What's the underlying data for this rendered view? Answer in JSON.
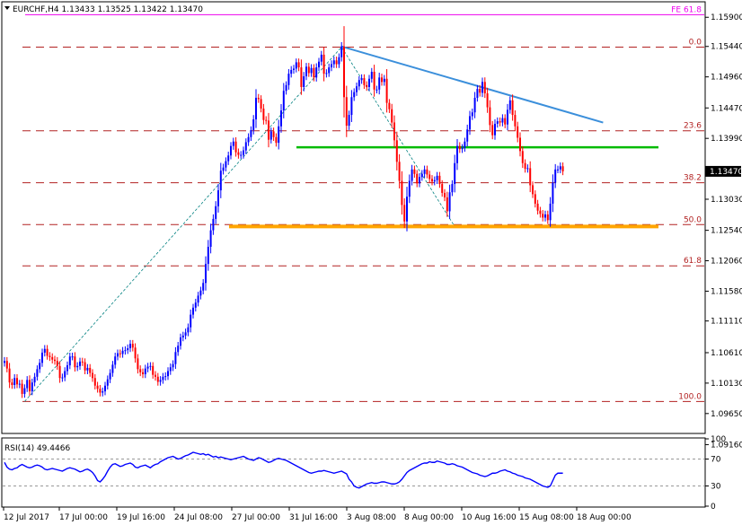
{
  "header": {
    "symbol_line": "EURCHF,H4  1.13433 1.13525 1.13422 1.13470",
    "fe_label": "FE 61.8"
  },
  "colors": {
    "bull": "#0000ff",
    "bear": "#ff0000",
    "fib_line": "#b22222",
    "fe_line": "#ee00ee",
    "green_line": "#00bb00",
    "orange_line": "#ffa500",
    "trend_line": "#3b8fdb",
    "rsi_line": "#0000ff",
    "price_label_bg": "#000000"
  },
  "chart_data": [
    {
      "type": "candlestick",
      "title": "EURCHF,H4",
      "ohlc_current": {
        "open": 1.13433,
        "high": 1.13525,
        "low": 1.13422,
        "close": 1.1347
      },
      "ylim": [
        1.0935,
        1.1613
      ],
      "y_ticks": [
        "1.15900",
        "1.15440",
        "1.14960",
        "1.14470",
        "1.13990",
        "1.13030",
        "1.12540",
        "1.12060",
        "1.11580",
        "1.11110",
        "1.10610",
        "1.10130",
        "1.09650",
        "1.09160"
      ],
      "current_price_label": "1.13470",
      "x_ticks": [
        "12 Jul 2017",
        "17 Jul 00:00",
        "19 Jul 16:00",
        "24 Jul 08:00",
        "27 Jul 00:00",
        "31 Jul 16:00",
        "3 Aug 08:00",
        "8 Aug 00:00",
        "10 Aug 16:00",
        "15 Aug 08:00",
        "18 Aug 00:00"
      ],
      "fibonacci_levels": [
        {
          "label": "0.0",
          "price": 1.1543
        },
        {
          "label": "23.6",
          "price": 1.1411
        },
        {
          "label": "38.2",
          "price": 1.1329
        },
        {
          "label": "50.0",
          "price": 1.1263
        },
        {
          "label": "61.8",
          "price": 1.1198
        },
        {
          "label": "100.0",
          "price": 1.0984
        }
      ],
      "fe_level": {
        "label": "FE 61.8",
        "price": 1.1594
      },
      "horizontal_lines": [
        {
          "name": "resistance",
          "price": 1.1385
        },
        {
          "name": "support",
          "price": 1.126
        }
      ],
      "trend_lines": [
        {
          "name": "falling trend",
          "from": {
            "candle": 134,
            "price": 1.1544
          },
          "to": {
            "candle": 238,
            "price": 1.1424
          }
        }
      ],
      "candles_close": [
        1.1048,
        1.1036,
        1.1014,
        1.101,
        1.1021,
        1.1011,
        1.1012,
        1.0996,
        1.1005,
        1.1018,
        1.1,
        1.1014,
        1.1023,
        1.1035,
        1.1045,
        1.1061,
        1.1067,
        1.1056,
        1.1054,
        1.105,
        1.1048,
        1.104,
        1.1021,
        1.1022,
        1.1032,
        1.1041,
        1.1055,
        1.1055,
        1.1038,
        1.104,
        1.1047,
        1.1046,
        1.1033,
        1.1037,
        1.1029,
        1.1021,
        1.1009,
        1.1004,
        1.0998,
        1.1,
        1.1009,
        1.1019,
        1.1029,
        1.1042,
        1.1055,
        1.106,
        1.1059,
        1.1064,
        1.1065,
        1.1068,
        1.1075,
        1.1069,
        1.1052,
        1.1035,
        1.103,
        1.1027,
        1.1036,
        1.1039,
        1.104,
        1.1026,
        1.1023,
        1.1015,
        1.1018,
        1.1023,
        1.1024,
        1.1032,
        1.1038,
        1.1043,
        1.1062,
        1.1072,
        1.1085,
        1.1088,
        1.1093,
        1.1101,
        1.1121,
        1.1132,
        1.114,
        1.1151,
        1.1159,
        1.1171,
        1.1201,
        1.1228,
        1.1254,
        1.1272,
        1.1292,
        1.1317,
        1.1348,
        1.1353,
        1.1363,
        1.1372,
        1.1387,
        1.1394,
        1.1377,
        1.1373,
        1.1373,
        1.138,
        1.1393,
        1.1401,
        1.1412,
        1.1429,
        1.1463,
        1.1461,
        1.1446,
        1.1428,
        1.1427,
        1.1397,
        1.141,
        1.1401,
        1.1392,
        1.1418,
        1.1443,
        1.1474,
        1.1483,
        1.1501,
        1.1507,
        1.1509,
        1.1519,
        1.1511,
        1.148,
        1.1497,
        1.1512,
        1.1502,
        1.151,
        1.1495,
        1.1511,
        1.152,
        1.1531,
        1.1501,
        1.1502,
        1.1511,
        1.1516,
        1.1522,
        1.1516,
        1.1527,
        1.1544,
        1.1464,
        1.1419,
        1.1436,
        1.1464,
        1.1472,
        1.1481,
        1.1491,
        1.1494,
        1.1483,
        1.148,
        1.1493,
        1.1504,
        1.1476,
        1.1476,
        1.1495,
        1.1488,
        1.1493,
        1.1455,
        1.1445,
        1.1424,
        1.1396,
        1.1362,
        1.1332,
        1.1294,
        1.1268,
        1.1307,
        1.1332,
        1.135,
        1.1343,
        1.1328,
        1.1338,
        1.1343,
        1.135,
        1.1342,
        1.1335,
        1.1331,
        1.1333,
        1.134,
        1.1327,
        1.1313,
        1.1306,
        1.1284,
        1.1314,
        1.1327,
        1.136,
        1.1387,
        1.1382,
        1.1384,
        1.1394,
        1.1413,
        1.1434,
        1.144,
        1.1463,
        1.1477,
        1.1471,
        1.1488,
        1.147,
        1.1448,
        1.142,
        1.1404,
        1.1422,
        1.1426,
        1.1424,
        1.1431,
        1.1421,
        1.1444,
        1.1459,
        1.1436,
        1.1418,
        1.14,
        1.1379,
        1.136,
        1.1351,
        1.1352,
        1.1325,
        1.1311,
        1.1296,
        1.1285,
        1.128,
        1.1274,
        1.1279,
        1.127,
        1.1296,
        1.1329,
        1.135,
        1.135,
        1.1355,
        1.1347
      ]
    },
    {
      "type": "line",
      "title": "RSI(14) 49.4466",
      "ylim": [
        0,
        100
      ],
      "y_ticks": [
        "100",
        "70",
        "30",
        "0"
      ],
      "levels": [
        70,
        30
      ],
      "values": [
        65,
        58,
        55,
        54,
        56,
        57,
        60,
        62,
        60,
        58,
        57,
        58,
        60,
        61,
        60,
        58,
        55,
        54,
        55,
        56,
        55,
        54,
        53,
        52,
        54,
        56,
        57,
        56,
        55,
        53,
        51,
        52,
        54,
        55,
        53,
        50,
        45,
        38,
        36,
        40,
        45,
        52,
        58,
        62,
        63,
        61,
        59,
        60,
        62,
        63,
        64,
        62,
        58,
        57,
        59,
        60,
        61,
        59,
        57,
        60,
        62,
        63,
        66,
        68,
        70,
        72,
        73,
        74,
        72,
        70,
        71,
        73,
        75,
        76,
        78,
        80,
        79,
        78,
        77,
        78,
        76,
        77,
        75,
        73,
        74,
        72,
        73,
        72,
        71,
        70,
        69,
        70,
        71,
        72,
        73,
        74,
        72,
        70,
        69,
        68,
        70,
        72,
        71,
        69,
        67,
        65,
        66,
        68,
        70,
        71,
        70,
        69,
        68,
        66,
        64,
        62,
        60,
        58,
        56,
        54,
        52,
        50,
        49,
        50,
        51,
        52,
        52,
        53,
        52,
        51,
        50,
        49,
        50,
        51,
        52,
        50,
        48,
        40,
        36,
        30,
        28,
        27,
        29,
        31,
        33,
        34,
        35,
        34,
        34,
        35,
        36,
        36,
        35,
        34,
        33,
        33,
        34,
        36,
        40,
        45,
        50,
        53,
        55,
        57,
        59,
        61,
        63,
        64,
        64,
        66,
        65,
        65,
        67,
        66,
        65,
        64,
        62,
        62,
        63,
        62,
        60,
        59,
        58,
        56,
        54,
        52,
        50,
        49,
        48,
        46,
        45,
        44,
        45,
        47,
        49,
        49,
        50,
        52,
        53,
        54,
        52,
        51,
        49,
        48,
        46,
        45,
        44,
        42,
        41,
        40,
        38,
        36,
        34,
        32,
        30,
        29,
        28,
        30,
        38,
        46,
        49,
        49,
        49
      ]
    }
  ],
  "rsi_label": "RSI(14) 49.4466"
}
